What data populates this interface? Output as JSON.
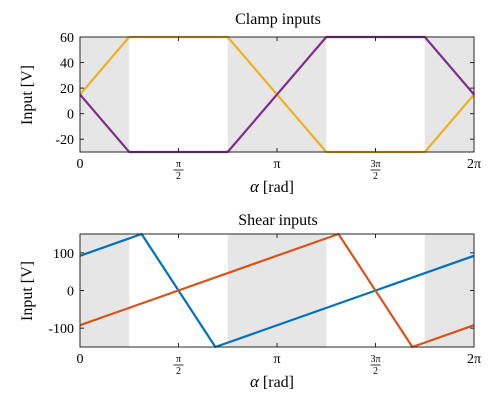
{
  "chart_data": [
    {
      "type": "line",
      "title": "Clamp inputs",
      "xlabel": "α [rad]",
      "ylabel": "Input [V]",
      "xlim": [
        0,
        6.2832
      ],
      "ylim": [
        -30,
        60
      ],
      "grid": false,
      "xticks": [
        {
          "value": 0,
          "label": "0"
        },
        {
          "value": 1.5708,
          "num": "π",
          "den": "2"
        },
        {
          "value": 3.1416,
          "label": "π"
        },
        {
          "value": 4.7124,
          "num": "3π",
          "den": "2"
        },
        {
          "value": 6.2832,
          "label": "2π"
        }
      ],
      "yticks": [
        {
          "value": -20,
          "label": "-20"
        },
        {
          "value": 0,
          "label": "0"
        },
        {
          "value": 20,
          "label": "20"
        },
        {
          "value": 40,
          "label": "40"
        },
        {
          "value": 60,
          "label": "60"
        }
      ],
      "shaded_regions": [
        [
          0,
          0.785
        ],
        [
          2.356,
          3.927
        ],
        [
          5.498,
          6.2832
        ]
      ],
      "shade_color": "#e6e6e6",
      "series": [
        {
          "color": "#EDB120",
          "x": [
            0,
            0.785,
            2.356,
            3.927,
            5.498,
            6.2832
          ],
          "y": [
            15,
            60,
            60,
            -30,
            -30,
            15
          ]
        },
        {
          "color": "#7E2F8E",
          "x": [
            0,
            0.785,
            2.356,
            3.927,
            5.498,
            6.2832
          ],
          "y": [
            15,
            -30,
            -30,
            60,
            60,
            15
          ]
        }
      ]
    },
    {
      "type": "line",
      "title": "Shear inputs",
      "xlabel": "α [rad]",
      "ylabel": "Input [V]",
      "xlim": [
        0,
        6.2832
      ],
      "ylim": [
        -150,
        150
      ],
      "grid": false,
      "xticks": [
        {
          "value": 0,
          "label": "0"
        },
        {
          "value": 1.5708,
          "num": "π",
          "den": "2"
        },
        {
          "value": 3.1416,
          "label": "π"
        },
        {
          "value": 4.7124,
          "num": "3π",
          "den": "2"
        },
        {
          "value": 6.2832,
          "label": "2π"
        }
      ],
      "yticks": [
        {
          "value": -100,
          "label": "-100"
        },
        {
          "value": 0,
          "label": "0"
        },
        {
          "value": 100,
          "label": "100"
        }
      ],
      "shaded_regions": [
        [
          0,
          0.785
        ],
        [
          2.356,
          3.927
        ],
        [
          5.498,
          6.2832
        ]
      ],
      "shade_color": "#e6e6e6",
      "series": [
        {
          "color": "#0072BD",
          "x": [
            0,
            0.982,
            2.16,
            6.2832
          ],
          "y": [
            92,
            150,
            -150,
            92
          ]
        },
        {
          "color": "#D95319",
          "x": [
            0,
            4.123,
            5.301,
            6.2832
          ],
          "y": [
            -92,
            150,
            -150,
            -92
          ]
        }
      ]
    }
  ]
}
